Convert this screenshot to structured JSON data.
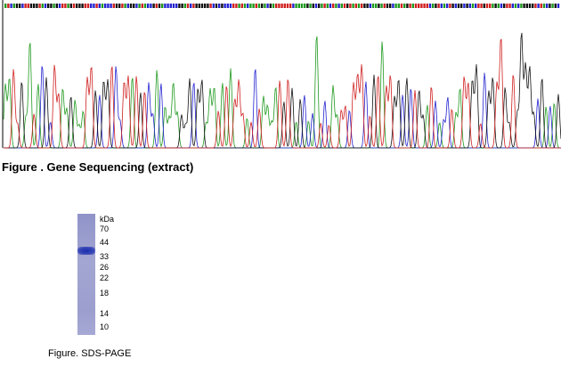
{
  "sequencing": {
    "caption": "Figure . Gene Sequencing (extract)"
  },
  "sds_page": {
    "unit": "kDa",
    "markers": [
      70,
      44,
      33,
      26,
      22,
      18,
      14,
      10
    ],
    "caption": "Figure. SDS-PAGE"
  }
}
